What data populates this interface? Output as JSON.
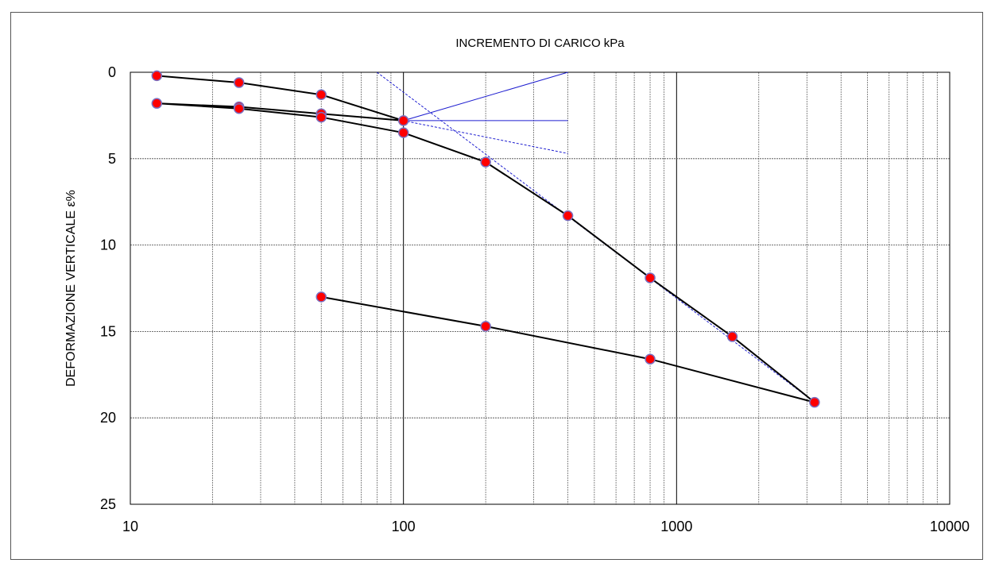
{
  "chart_data": {
    "type": "scatter",
    "title": "INCREMENTO DI CARICO  kPa",
    "xlabel": "",
    "ylabel": "DEFORMAZIONE VERTICALE  ε%",
    "x_scale": "log",
    "xlim": [
      10,
      10000
    ],
    "ylim": [
      0,
      25
    ],
    "y_inverted": true,
    "x_ticks": [
      "10",
      "100",
      "1000",
      "10000"
    ],
    "y_ticks": [
      "0",
      "5",
      "10",
      "15",
      "20",
      "25"
    ],
    "grid": true,
    "colors": {
      "curve": "#000000",
      "construction": "#1f1fd0",
      "marker_fill": "#ff0000",
      "marker_edge": "#7a6fc0"
    },
    "series": [
      {
        "role": "curve",
        "x": [
          12.5,
          25,
          50,
          100,
          50,
          25,
          12.5,
          25,
          50,
          100,
          200,
          400,
          800,
          1600,
          3200,
          800,
          200,
          50
        ],
        "y": [
          0.2,
          0.6,
          1.3,
          2.8,
          2.4,
          2.0,
          1.8,
          2.1,
          2.6,
          3.5,
          5.2,
          8.3,
          11.9,
          15.3,
          19.1,
          16.6,
          14.7,
          13.0
        ]
      },
      {
        "role": "construction-tangent",
        "x": [
          100,
          400
        ],
        "y": [
          2.8,
          0.0
        ]
      },
      {
        "role": "construction-horizontal",
        "x": [
          100,
          400
        ],
        "y": [
          2.8,
          2.8
        ]
      },
      {
        "role": "construction-bisector",
        "x": [
          100,
          400
        ],
        "y": [
          2.8,
          4.7
        ]
      },
      {
        "role": "construction-virgin-line",
        "x": [
          80,
          3200
        ],
        "y": [
          0.0,
          19.1
        ]
      }
    ]
  }
}
